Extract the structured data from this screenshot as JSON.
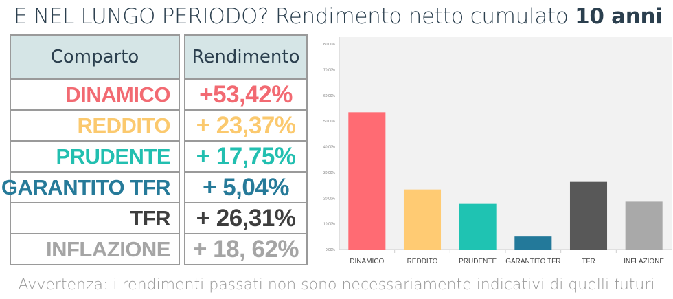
{
  "title": {
    "prefix": "E NEL LUNGO PERIODO?",
    "middle": " Rendimento netto cumulato ",
    "bold": "10 anni"
  },
  "table": {
    "headers": [
      "Comparto",
      "Rendimento"
    ],
    "rows": [
      {
        "name": "DINAMICO",
        "value": "+53,42%",
        "color": "#f26a72"
      },
      {
        "name": "REDDITO",
        "value": "+ 23,37%",
        "color": "#fbc96e"
      },
      {
        "name": "PRUDENTE",
        "value": "+ 17,75%",
        "color": "#22bfb0"
      },
      {
        "name": "GARANTITO TFR",
        "value": "+ 5,04%",
        "color": "#267a99"
      },
      {
        "name": "TFR",
        "value": "+ 26,31%",
        "color": "#3e3e3e"
      },
      {
        "name": "INFLAZIONE",
        "value": "+ 18, 62%",
        "color": "#a5a5a5"
      }
    ]
  },
  "chart_data": {
    "type": "bar",
    "categories": [
      "DINAMICO",
      "REDDITO",
      "PRUDENTE",
      "GARANTITO TFR",
      "TFR",
      "INFLAZIONE"
    ],
    "values": [
      53.42,
      23.37,
      17.75,
      5.04,
      26.31,
      18.62
    ],
    "colors": [
      "#ff6b73",
      "#ffcb73",
      "#1fc3b2",
      "#23799a",
      "#585858",
      "#a9a9a9"
    ],
    "ylim": [
      0,
      80
    ],
    "yticks": [
      "0,00%",
      "10,00%",
      "20,00%",
      "30,00%",
      "40,00%",
      "50,00%",
      "60,00%",
      "70,00%",
      "80,00%"
    ],
    "title": "",
    "xlabel": "",
    "ylabel": "",
    "grid": false,
    "background": "#f2f2f2"
  },
  "footer": "Avvertenza: i rendimenti passati non sono necessariamente indicativi di quelli futuri"
}
